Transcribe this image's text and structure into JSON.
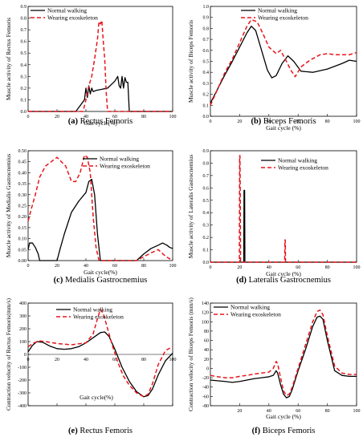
{
  "figure": {
    "legend": {
      "normal": "Normal walking",
      "exo": "Wearing exoskeleton"
    },
    "colors": {
      "normal": "#000000",
      "exo": "#e8141b"
    }
  },
  "chart_data": [
    {
      "id": "a",
      "type": "line",
      "caption_letter": "(a)",
      "caption_text": "Rectus Femoris",
      "xlabel": "Gait cycle(%)",
      "ylabel": "Muscle activity of Rectus Femoris",
      "xlim": [
        0,
        100
      ],
      "ylim": [
        0,
        0.9
      ],
      "xticks": [
        0,
        20,
        40,
        60,
        80,
        100
      ],
      "yticks": [
        0.0,
        0.1,
        0.2,
        0.3,
        0.4,
        0.5,
        0.6,
        0.7,
        0.8,
        0.9
      ],
      "ytick_labels": [
        "0.0",
        "0.1",
        "0.2",
        "0.3",
        "0.4",
        "0.5",
        "0.6",
        "0.7",
        "0.8",
        "0.9"
      ],
      "legend_position": "top-left",
      "series": [
        {
          "name": "Normal walking",
          "style": "solid",
          "x": [
            0,
            33,
            36,
            39,
            40,
            41,
            42,
            43,
            44,
            45,
            47,
            55,
            60,
            62,
            63,
            64,
            65,
            66,
            67,
            68,
            69,
            70,
            100
          ],
          "y": [
            0,
            0,
            0.05,
            0.1,
            0.2,
            0.12,
            0.22,
            0.15,
            0.2,
            0.17,
            0.18,
            0.2,
            0.26,
            0.3,
            0.22,
            0.2,
            0.3,
            0.2,
            0.29,
            0.25,
            0.25,
            0,
            0
          ]
        },
        {
          "name": "Wearing exoskeleton",
          "style": "dashed",
          "x": [
            0,
            38,
            40,
            42,
            44,
            46,
            48,
            49,
            50,
            51,
            52,
            53,
            54,
            55,
            100
          ],
          "y": [
            0,
            0,
            0.1,
            0.22,
            0.3,
            0.45,
            0.62,
            0.77,
            0.75,
            0.78,
            0.6,
            0.45,
            0.17,
            0,
            0
          ]
        }
      ]
    },
    {
      "id": "b",
      "type": "line",
      "caption_letter": "(b)",
      "caption_text": "Biceps Femoris",
      "xlabel": "Gait cycle (%)",
      "ylabel": "Muscle activity of Biceps Femoris",
      "xlim": [
        0,
        100
      ],
      "ylim": [
        0,
        1.0
      ],
      "xticks": [
        0,
        20,
        40,
        60,
        80,
        100
      ],
      "yticks": [
        0.0,
        0.1,
        0.2,
        0.3,
        0.4,
        0.5,
        0.6,
        0.7,
        0.8,
        0.9,
        1.0
      ],
      "ytick_labels": [
        "0.0",
        "0.1",
        "0.2",
        "0.3",
        "0.4",
        "0.5",
        "0.6",
        "0.7",
        "0.8",
        "0.9",
        "1.0"
      ],
      "legend_position": "top-right",
      "series": [
        {
          "name": "Normal walking",
          "style": "solid",
          "x": [
            0,
            5,
            10,
            15,
            20,
            25,
            28,
            31,
            35,
            39,
            42,
            45,
            49,
            53,
            57,
            62,
            70,
            80,
            90,
            95,
            100
          ],
          "y": [
            0.12,
            0.25,
            0.38,
            0.5,
            0.63,
            0.76,
            0.82,
            0.78,
            0.6,
            0.42,
            0.35,
            0.37,
            0.48,
            0.55,
            0.5,
            0.41,
            0.4,
            0.43,
            0.48,
            0.51,
            0.5
          ]
        },
        {
          "name": "Wearing exoskeleton",
          "style": "dashed",
          "x": [
            0,
            5,
            10,
            15,
            20,
            25,
            28,
            32,
            36,
            40,
            45,
            48,
            52,
            55,
            58,
            62,
            68,
            75,
            80,
            85,
            90,
            95,
            100
          ],
          "y": [
            0.1,
            0.25,
            0.4,
            0.52,
            0.67,
            0.82,
            0.88,
            0.86,
            0.75,
            0.63,
            0.57,
            0.6,
            0.5,
            0.42,
            0.36,
            0.45,
            0.51,
            0.56,
            0.57,
            0.56,
            0.56,
            0.56,
            0.58
          ]
        }
      ]
    },
    {
      "id": "c",
      "type": "line",
      "caption_letter": "(c)",
      "caption_text": "Medialis Gastrocnemius",
      "xlabel": "Gait cycle(%)",
      "ylabel": "Muscle activity of Medialis Gastrocnemius",
      "xlim": [
        0,
        100
      ],
      "ylim": [
        0,
        0.5
      ],
      "xticks": [
        0,
        20,
        40,
        60,
        80,
        100
      ],
      "yticks": [
        0.0,
        0.05,
        0.1,
        0.15,
        0.2,
        0.25,
        0.3,
        0.35,
        0.4,
        0.45,
        0.5
      ],
      "ytick_labels": [
        "0.00",
        "0.05",
        "0.10",
        "0.15",
        "0.20",
        "0.25",
        "0.30",
        "0.35",
        "0.40",
        "0.45",
        "0.50"
      ],
      "legend_position": "top-right",
      "series": [
        {
          "name": "Normal walking",
          "style": "solid",
          "x": [
            0,
            1,
            3,
            5,
            7,
            8,
            20,
            22,
            25,
            30,
            35,
            40,
            42,
            44,
            46,
            48,
            50,
            75,
            80,
            85,
            90,
            93,
            96,
            98,
            100
          ],
          "y": [
            0.05,
            0.08,
            0.08,
            0.06,
            0.03,
            0,
            0,
            0.05,
            0.12,
            0.22,
            0.27,
            0.31,
            0.36,
            0.37,
            0.3,
            0.12,
            0,
            0,
            0.03,
            0.055,
            0.07,
            0.08,
            0.07,
            0.06,
            0.055
          ]
        },
        {
          "name": "Wearing exoskeleton",
          "style": "dashed",
          "x": [
            0,
            2,
            5,
            8,
            12,
            20,
            26,
            30,
            33,
            36,
            39,
            41,
            43,
            45,
            47,
            49,
            50,
            60,
            75,
            85,
            90,
            95,
            100
          ],
          "y": [
            0.18,
            0.23,
            0.3,
            0.38,
            0.43,
            0.47,
            0.43,
            0.36,
            0.36,
            0.4,
            0.48,
            0.47,
            0.4,
            0.2,
            0.06,
            0,
            0,
            0,
            0,
            0.035,
            0.05,
            0.02,
            0
          ]
        }
      ]
    },
    {
      "id": "d",
      "type": "line",
      "caption_letter": "(d)",
      "caption_text": "Lateralis Gastrocnemius",
      "xlabel": "Gait cycle (%)",
      "ylabel": "Muscle activity of Lateralis Gastrocnemius",
      "xlim": [
        0,
        100
      ],
      "ylim": [
        0,
        0.9
      ],
      "xticks": [
        0,
        20,
        40,
        60,
        80,
        100
      ],
      "yticks": [
        0.0,
        0.1,
        0.2,
        0.3,
        0.4,
        0.5,
        0.6,
        0.7,
        0.8,
        0.9
      ],
      "ytick_labels": [
        "0.0",
        "0.1",
        "0.2",
        "0.3",
        "0.4",
        "0.5",
        "0.6",
        "0.7",
        "0.8",
        "0.9"
      ],
      "legend_position": "top-right",
      "series": [
        {
          "name": "Normal walking",
          "style": "solid",
          "x": [
            0,
            22.8,
            23,
            23.2,
            23.4,
            23.6,
            100
          ],
          "y": [
            0,
            0,
            0.58,
            0.58,
            0.58,
            0,
            0
          ]
        },
        {
          "name": "Wearing exoskeleton",
          "style": "dashed",
          "x": [
            0,
            19.8,
            20,
            20.2,
            20.4,
            20.6,
            50.8,
            51,
            51.2,
            51.4,
            100
          ],
          "y": [
            0,
            0,
            0.86,
            0.86,
            0.6,
            0,
            0,
            0.18,
            0.18,
            0,
            0
          ]
        }
      ]
    },
    {
      "id": "e",
      "type": "line",
      "caption_letter": "(e)",
      "caption_text": "Rectus Femoris",
      "xlabel": "Gait cycle(%)",
      "ylabel": "Contraction velocity of Rectus Femoris(mm/s)",
      "xlim": [
        0,
        100
      ],
      "ylim": [
        -400,
        400
      ],
      "xticks": [
        0,
        20,
        40,
        60,
        80,
        100
      ],
      "yticks": [
        -400,
        -300,
        -200,
        -100,
        0,
        100,
        200,
        300,
        400
      ],
      "ytick_labels": [
        "-400",
        "-300",
        "-200",
        "-100",
        "0",
        "100",
        "200",
        "300",
        "400"
      ],
      "legend_position": "top-center",
      "series": [
        {
          "name": "Normal walking",
          "style": "solid",
          "x": [
            0,
            3,
            6,
            10,
            15,
            20,
            25,
            30,
            35,
            40,
            45,
            50,
            53,
            56,
            60,
            65,
            70,
            75,
            80,
            83,
            86,
            90,
            95,
            100
          ],
          "y": [
            20,
            70,
            100,
            95,
            65,
            45,
            40,
            45,
            60,
            90,
            130,
            170,
            175,
            140,
            40,
            -100,
            -210,
            -290,
            -330,
            -320,
            -270,
            -160,
            -50,
            10
          ]
        },
        {
          "name": "Wearing exoskeleton",
          "style": "dashed",
          "x": [
            0,
            4,
            8,
            12,
            20,
            30,
            40,
            45,
            48,
            50,
            52,
            55,
            58,
            62,
            66,
            70,
            75,
            80,
            83,
            86,
            90,
            95,
            100
          ],
          "y": [
            60,
            90,
            105,
            100,
            85,
            75,
            90,
            160,
            280,
            350,
            320,
            200,
            80,
            -60,
            -170,
            -240,
            -300,
            -330,
            -310,
            -230,
            -80,
            30,
            60
          ]
        }
      ]
    },
    {
      "id": "f",
      "type": "line",
      "caption_letter": "(f)",
      "caption_text": "Biceps Femoris",
      "xlabel": "Gait cycle (%)",
      "ylabel": "Contraction velocity of Biceps Femoris (mm/s)",
      "xlim": [
        0,
        100
      ],
      "ylim": [
        -80,
        140
      ],
      "xticks": [
        20,
        40,
        60,
        80,
        100
      ],
      "yticks": [
        -80,
        -60,
        -40,
        -20,
        0,
        20,
        40,
        60,
        80,
        100,
        120,
        140
      ],
      "ytick_labels": [
        "-80",
        "-60",
        "-40",
        "-20",
        "0",
        "20",
        "40",
        "60",
        "80",
        "100",
        "120",
        "140"
      ],
      "legend_position": "top-left",
      "series": [
        {
          "name": "Normal walking",
          "style": "solid",
          "x": [
            0,
            10,
            15,
            20,
            25,
            30,
            35,
            40,
            43,
            45,
            46,
            48,
            50,
            52,
            54,
            56,
            60,
            65,
            70,
            73,
            75,
            77,
            80,
            85,
            90,
            95,
            100
          ],
          "y": [
            -25,
            -28,
            -30,
            -28,
            -25,
            -22,
            -20,
            -18,
            -15,
            -5,
            -10,
            -35,
            -55,
            -63,
            -60,
            -45,
            -5,
            40,
            90,
            110,
            112,
            105,
            60,
            -5,
            -15,
            -17,
            -17
          ]
        },
        {
          "name": "Wearing exoskeleton",
          "style": "dashed",
          "x": [
            0,
            5,
            10,
            15,
            20,
            25,
            30,
            35,
            40,
            43,
            45,
            46,
            48,
            50,
            52,
            54,
            56,
            60,
            65,
            70,
            73,
            75,
            77,
            80,
            85,
            90,
            95,
            100
          ],
          "y": [
            -15,
            -18,
            -20,
            -20,
            -17,
            -15,
            -12,
            -10,
            -8,
            0,
            15,
            10,
            -20,
            -48,
            -58,
            -55,
            -40,
            0,
            50,
            100,
            122,
            125,
            115,
            70,
            5,
            -10,
            -13,
            -13
          ]
        }
      ]
    }
  ]
}
